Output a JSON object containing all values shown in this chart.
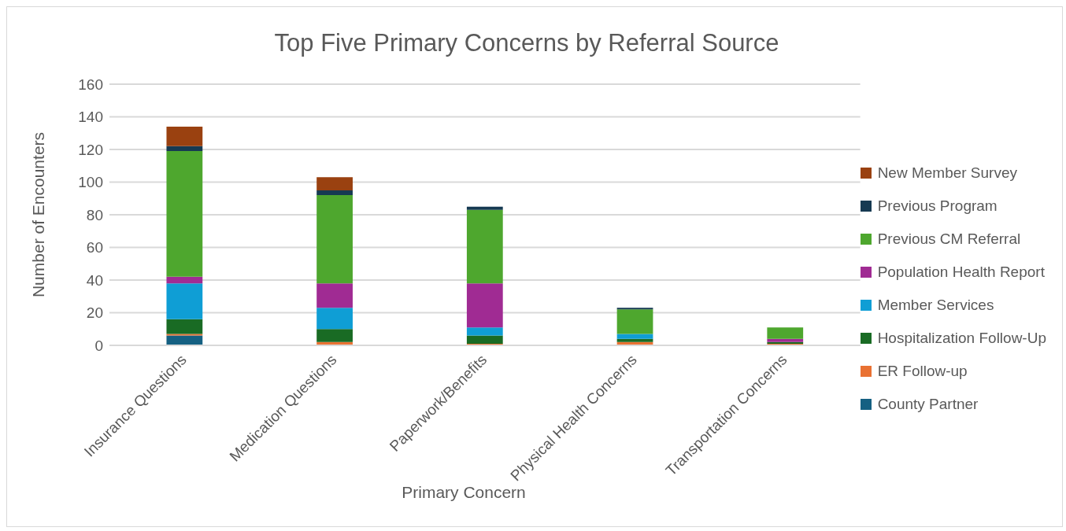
{
  "chart_data": {
    "type": "bar",
    "title": "Top Five Primary Concerns by Referral Source",
    "xlabel": "Primary Concern",
    "ylabel": "Number of Encounters",
    "categories": [
      "Insurance Questions",
      "Medication Questions",
      "Paperwork/Benefits",
      "Physical Health Concerns",
      "Transportation Concerns"
    ],
    "stacked": true,
    "ylim": [
      0,
      160
    ],
    "yticks": [
      0,
      20,
      40,
      60,
      80,
      100,
      120,
      140,
      160
    ],
    "grid": "y",
    "legend": "right",
    "series": [
      {
        "name": "County Partner",
        "color": "#156082",
        "values": [
          6,
          0,
          0,
          0,
          0
        ]
      },
      {
        "name": "ER Follow-up",
        "color": "#e97132",
        "values": [
          1,
          2,
          1,
          2,
          1
        ]
      },
      {
        "name": "Hospitalization Follow-Up",
        "color": "#196b24",
        "values": [
          9,
          8,
          5,
          2,
          1
        ]
      },
      {
        "name": "Member Services",
        "color": "#0f9ed5",
        "values": [
          22,
          13,
          5,
          3,
          0
        ]
      },
      {
        "name": "Population Health Report",
        "color": "#a02b93",
        "values": [
          4,
          15,
          27,
          0,
          2
        ]
      },
      {
        "name": "Previous CM Referral",
        "color": "#4ea72e",
        "values": [
          77,
          54,
          45,
          15,
          7
        ]
      },
      {
        "name": "Previous Program",
        "color": "#163a52",
        "values": [
          3,
          3,
          2,
          1,
          0
        ]
      },
      {
        "name": "New Member Survey",
        "color": "#9a4110",
        "values": [
          12,
          8,
          0,
          0,
          0
        ]
      }
    ]
  }
}
